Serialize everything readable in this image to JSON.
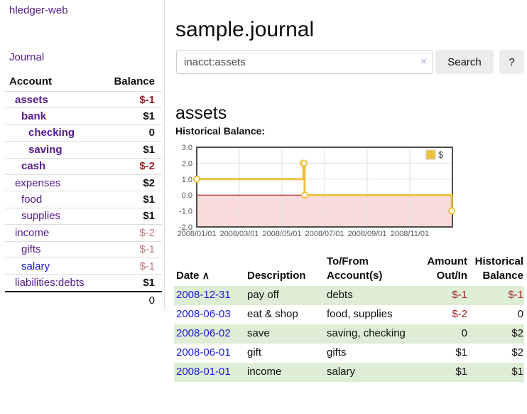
{
  "sidebar": {
    "brand": "hledger-web",
    "nav": {
      "journal": "Journal"
    },
    "table": {
      "col_account": "Account",
      "col_balance": "Balance",
      "accounts": [
        {
          "name": "assets",
          "balance": "$-1"
        },
        {
          "name": "bank",
          "balance": "$1"
        },
        {
          "name": "checking",
          "balance": "0"
        },
        {
          "name": "saving",
          "balance": "$1"
        },
        {
          "name": "cash",
          "balance": "$-2"
        },
        {
          "name": "expenses",
          "balance": "$2"
        },
        {
          "name": "food",
          "balance": "$1"
        },
        {
          "name": "supplies",
          "balance": "$1"
        },
        {
          "name": "income",
          "balance": "$-2"
        },
        {
          "name": "gifts",
          "balance": "$-1"
        },
        {
          "name": "salary",
          "balance": "$-1"
        },
        {
          "name": "liabilities:debts",
          "balance": "$1"
        }
      ],
      "total": "0"
    }
  },
  "main": {
    "title": "sample.journal",
    "search": {
      "value": "inacct:assets",
      "clear_label": "×",
      "button": "Search",
      "help": "?"
    },
    "account_heading": "assets",
    "chart_label": "Historical Balance:",
    "register": {
      "headers": {
        "date": "Date",
        "sort_indicator": "∧",
        "description": "Description",
        "tofrom_1": "To/From",
        "tofrom_2": "Account(s)",
        "amount_1": "Amount",
        "amount_2": "Out/In",
        "balance_1": "Historical",
        "balance_2": "Balance"
      },
      "rows": [
        {
          "date": "2008-12-31",
          "description": "pay off",
          "accounts": "debts",
          "amount": "$-1",
          "balance": "$-1"
        },
        {
          "date": "2008-06-03",
          "description": "eat & shop",
          "accounts": "food, supplies",
          "amount": "$-2",
          "balance": "0"
        },
        {
          "date": "2008-06-02",
          "description": "save",
          "accounts": "saving, checking",
          "amount": "0",
          "balance": "$2"
        },
        {
          "date": "2008-06-01",
          "description": "gift",
          "accounts": "gifts",
          "amount": "$1",
          "balance": "$2"
        },
        {
          "date": "2008-01-01",
          "description": "income",
          "accounts": "salary",
          "amount": "$1",
          "balance": "$1"
        }
      ]
    }
  },
  "chart_data": {
    "type": "line",
    "step": true,
    "title": "Historical Balance",
    "xlabel": "",
    "ylabel": "",
    "ylim": [
      -2,
      3
    ],
    "xlim_months": [
      0,
      12
    ],
    "grid": true,
    "legend_position": "ne",
    "series": [
      {
        "name": "$",
        "color": "#edc240",
        "points": [
          [
            "2008-01-01",
            1
          ],
          [
            "2008-06-01",
            2
          ],
          [
            "2008-06-02",
            2
          ],
          [
            "2008-06-03",
            0
          ],
          [
            "2008-12-31",
            -1
          ]
        ]
      }
    ],
    "xticks": [
      [
        "2008/01/01",
        0
      ],
      [
        "2008/03/01",
        2
      ],
      [
        "2008/05/01",
        4
      ],
      [
        "2008/07/01",
        6
      ],
      [
        "2008/09/01",
        8
      ],
      [
        "2008/11/01",
        10
      ]
    ],
    "yticks": [
      [
        "3.0",
        3
      ],
      [
        "2.0",
        2
      ],
      [
        "1.0",
        1
      ],
      [
        "0.0",
        0
      ],
      [
        "-1.0",
        -1
      ],
      [
        "-2.0",
        -2
      ]
    ],
    "negative_region_color": "#fadbdb",
    "zero_line_color": "#990000",
    "grid_color": "#e0e0e0",
    "border_color": "#4d4d4d"
  },
  "colors": {
    "link_purple": "#551a8b",
    "link_blue": "#1c1cd9",
    "negative_strong": "#9e2126",
    "negative_soft": "#c4787d",
    "row_stripe_green": "#deedd5",
    "series_yellow": "#edc240"
  }
}
